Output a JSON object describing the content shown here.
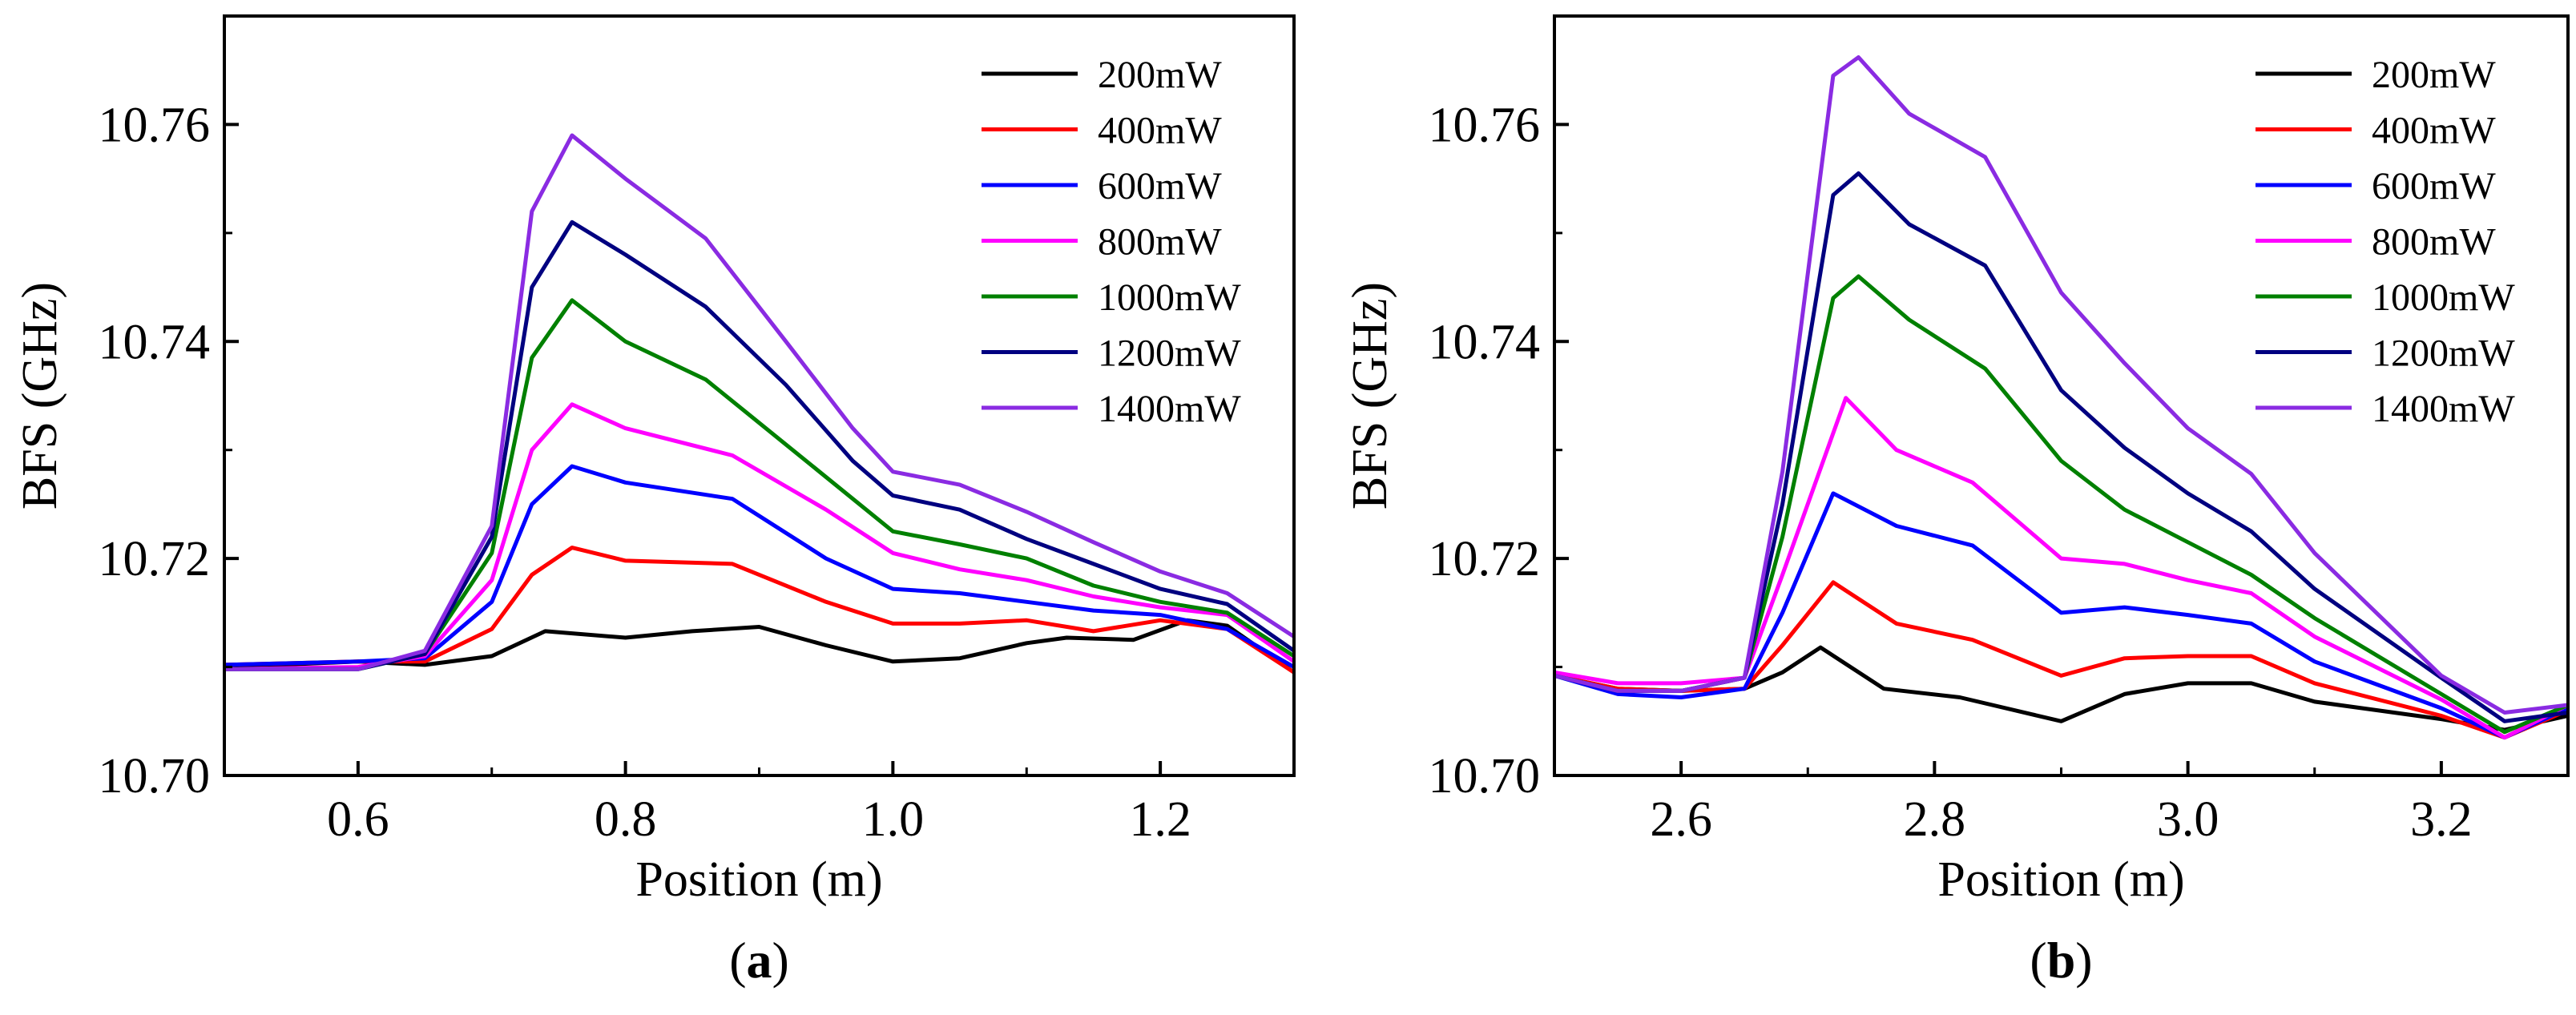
{
  "chart_data": [
    {
      "type": "line",
      "panel_label": "a",
      "xlabel": "Position (m)",
      "ylabel": "BFS  (GHz)",
      "xlim": [
        0.5,
        1.3
      ],
      "ylim": [
        10.7,
        10.77
      ],
      "xticks": [
        0.6,
        0.8,
        1.0,
        1.2
      ],
      "xtick_labels": [
        "0.6",
        "0.8",
        "1.0",
        "1.2"
      ],
      "yticks": [
        10.7,
        10.72,
        10.74,
        10.76
      ],
      "ytick_labels": [
        "10.70",
        "10.72",
        "10.74",
        "10.76"
      ],
      "legend_position": "top-right",
      "series": [
        {
          "name": "200mW",
          "color": "#000000",
          "points": [
            [
              0.5,
              10.71
            ],
            [
              0.6,
              10.7105
            ],
            [
              0.65,
              10.7102
            ],
            [
              0.7,
              10.711
            ],
            [
              0.74,
              10.7133
            ],
            [
              0.8,
              10.7127
            ],
            [
              0.85,
              10.7133
            ],
            [
              0.9,
              10.7137
            ],
            [
              0.95,
              10.712
            ],
            [
              1.0,
              10.7105
            ],
            [
              1.05,
              10.7108
            ],
            [
              1.1,
              10.7122
            ],
            [
              1.13,
              10.7127
            ],
            [
              1.18,
              10.7125
            ],
            [
              1.22,
              10.7143
            ],
            [
              1.25,
              10.7138
            ],
            [
              1.3,
              10.7095
            ]
          ]
        },
        {
          "name": "400mW",
          "color": "#ff0000",
          "points": [
            [
              0.5,
              10.7102
            ],
            [
              0.6,
              10.7105
            ],
            [
              0.65,
              10.7105
            ],
            [
              0.7,
              10.7135
            ],
            [
              0.73,
              10.7185
            ],
            [
              0.76,
              10.721
            ],
            [
              0.8,
              10.7198
            ],
            [
              0.88,
              10.7195
            ],
            [
              0.95,
              10.716
            ],
            [
              1.0,
              10.714
            ],
            [
              1.05,
              10.714
            ],
            [
              1.1,
              10.7143
            ],
            [
              1.15,
              10.7133
            ],
            [
              1.2,
              10.7143
            ],
            [
              1.25,
              10.7135
            ],
            [
              1.3,
              10.7095
            ]
          ]
        },
        {
          "name": "600mW",
          "color": "#0000ff",
          "points": [
            [
              0.5,
              10.7102
            ],
            [
              0.6,
              10.7105
            ],
            [
              0.65,
              10.7108
            ],
            [
              0.7,
              10.716
            ],
            [
              0.73,
              10.725
            ],
            [
              0.76,
              10.7285
            ],
            [
              0.8,
              10.727
            ],
            [
              0.88,
              10.7255
            ],
            [
              0.95,
              10.72
            ],
            [
              1.0,
              10.7172
            ],
            [
              1.05,
              10.7168
            ],
            [
              1.1,
              10.716
            ],
            [
              1.15,
              10.7152
            ],
            [
              1.2,
              10.7148
            ],
            [
              1.25,
              10.7135
            ],
            [
              1.3,
              10.71
            ]
          ]
        },
        {
          "name": "800mW",
          "color": "#ff00ff",
          "points": [
            [
              0.5,
              10.7098
            ],
            [
              0.6,
              10.71
            ],
            [
              0.65,
              10.711
            ],
            [
              0.7,
              10.718
            ],
            [
              0.73,
              10.73
            ],
            [
              0.76,
              10.7342
            ],
            [
              0.8,
              10.732
            ],
            [
              0.88,
              10.7295
            ],
            [
              0.95,
              10.7245
            ],
            [
              1.0,
              10.7205
            ],
            [
              1.05,
              10.719
            ],
            [
              1.1,
              10.718
            ],
            [
              1.15,
              10.7165
            ],
            [
              1.2,
              10.7155
            ],
            [
              1.25,
              10.7148
            ],
            [
              1.3,
              10.7105
            ]
          ]
        },
        {
          "name": "1000mW",
          "color": "#008000",
          "points": [
            [
              0.5,
              10.7098
            ],
            [
              0.6,
              10.7098
            ],
            [
              0.65,
              10.7112
            ],
            [
              0.7,
              10.7205
            ],
            [
              0.73,
              10.7385
            ],
            [
              0.76,
              10.7438
            ],
            [
              0.8,
              10.74
            ],
            [
              0.86,
              10.7365
            ],
            [
              0.92,
              10.7305
            ],
            [
              1.0,
              10.7225
            ],
            [
              1.05,
              10.7213
            ],
            [
              1.1,
              10.72
            ],
            [
              1.15,
              10.7175
            ],
            [
              1.2,
              10.716
            ],
            [
              1.25,
              10.715
            ],
            [
              1.3,
              10.711
            ]
          ]
        },
        {
          "name": "1200mW",
          "color": "#000080",
          "points": [
            [
              0.5,
              10.7098
            ],
            [
              0.6,
              10.7098
            ],
            [
              0.65,
              10.7112
            ],
            [
              0.7,
              10.722
            ],
            [
              0.73,
              10.745
            ],
            [
              0.76,
              10.751
            ],
            [
              0.8,
              10.748
            ],
            [
              0.86,
              10.7432
            ],
            [
              0.92,
              10.736
            ],
            [
              0.97,
              10.729
            ],
            [
              1.0,
              10.7258
            ],
            [
              1.05,
              10.7245
            ],
            [
              1.1,
              10.7218
            ],
            [
              1.15,
              10.7195
            ],
            [
              1.2,
              10.7172
            ],
            [
              1.25,
              10.7158
            ],
            [
              1.3,
              10.7115
            ]
          ]
        },
        {
          "name": "1400mW",
          "color": "#8a2be2",
          "points": [
            [
              0.5,
              10.7098
            ],
            [
              0.6,
              10.7098
            ],
            [
              0.65,
              10.7115
            ],
            [
              0.7,
              10.723
            ],
            [
              0.73,
              10.752
            ],
            [
              0.76,
              10.759
            ],
            [
              0.8,
              10.755
            ],
            [
              0.86,
              10.7495
            ],
            [
              0.92,
              10.74
            ],
            [
              0.97,
              10.732
            ],
            [
              1.0,
              10.728
            ],
            [
              1.05,
              10.7268
            ],
            [
              1.1,
              10.7243
            ],
            [
              1.15,
              10.7215
            ],
            [
              1.2,
              10.7188
            ],
            [
              1.25,
              10.7168
            ],
            [
              1.3,
              10.7128
            ]
          ]
        }
      ]
    },
    {
      "type": "line",
      "panel_label": "b",
      "xlabel": "Position (m)",
      "ylabel": "BFS  (GHz)",
      "xlim": [
        2.5,
        3.3
      ],
      "ylim": [
        10.7,
        10.77
      ],
      "xticks": [
        2.6,
        2.8,
        3.0,
        3.2
      ],
      "xtick_labels": [
        "2.6",
        "2.8",
        "3.0",
        "3.2"
      ],
      "yticks": [
        10.7,
        10.72,
        10.74,
        10.76
      ],
      "ytick_labels": [
        "10.70",
        "10.72",
        "10.74",
        "10.76"
      ],
      "legend_position": "top-right",
      "series": [
        {
          "name": "200mW",
          "color": "#000000",
          "points": [
            [
              2.5,
              10.7092
            ],
            [
              2.55,
              10.708
            ],
            [
              2.6,
              10.7078
            ],
            [
              2.65,
              10.708
            ],
            [
              2.68,
              10.7095
            ],
            [
              2.71,
              10.7118
            ],
            [
              2.76,
              10.708
            ],
            [
              2.82,
              10.7072
            ],
            [
              2.9,
              10.705
            ],
            [
              2.95,
              10.7075
            ],
            [
              3.0,
              10.7085
            ],
            [
              3.05,
              10.7085
            ],
            [
              3.1,
              10.7068
            ],
            [
              3.2,
              10.7052
            ],
            [
              3.25,
              10.7042
            ],
            [
              3.3,
              10.7055
            ]
          ]
        },
        {
          "name": "400mW",
          "color": "#ff0000",
          "points": [
            [
              2.5,
              10.7092
            ],
            [
              2.55,
              10.708
            ],
            [
              2.6,
              10.7078
            ],
            [
              2.65,
              10.708
            ],
            [
              2.68,
              10.712
            ],
            [
              2.72,
              10.7178
            ],
            [
              2.77,
              10.714
            ],
            [
              2.83,
              10.7125
            ],
            [
              2.9,
              10.7092
            ],
            [
              2.95,
              10.7108
            ],
            [
              3.0,
              10.711
            ],
            [
              3.05,
              10.711
            ],
            [
              3.1,
              10.7085
            ],
            [
              3.2,
              10.7055
            ],
            [
              3.25,
              10.7035
            ],
            [
              3.3,
              10.706
            ]
          ]
        },
        {
          "name": "600mW",
          "color": "#0000ff",
          "points": [
            [
              2.5,
              10.7092
            ],
            [
              2.55,
              10.7075
            ],
            [
              2.6,
              10.7072
            ],
            [
              2.65,
              10.708
            ],
            [
              2.68,
              10.715
            ],
            [
              2.72,
              10.726
            ],
            [
              2.77,
              10.723
            ],
            [
              2.83,
              10.7212
            ],
            [
              2.9,
              10.715
            ],
            [
              2.95,
              10.7155
            ],
            [
              3.0,
              10.7148
            ],
            [
              3.05,
              10.714
            ],
            [
              3.1,
              10.7105
            ],
            [
              3.2,
              10.7062
            ],
            [
              3.25,
              10.7035
            ],
            [
              3.3,
              10.7062
            ]
          ]
        },
        {
          "name": "800mW",
          "color": "#ff00ff",
          "points": [
            [
              2.5,
              10.7095
            ],
            [
              2.55,
              10.7085
            ],
            [
              2.6,
              10.7085
            ],
            [
              2.65,
              10.709
            ],
            [
              2.68,
              10.7185
            ],
            [
              2.73,
              10.7348
            ],
            [
              2.77,
              10.73
            ],
            [
              2.83,
              10.727
            ],
            [
              2.9,
              10.72
            ],
            [
              2.95,
              10.7195
            ],
            [
              3.0,
              10.718
            ],
            [
              3.05,
              10.7168
            ],
            [
              3.1,
              10.7128
            ],
            [
              3.2,
              10.707
            ],
            [
              3.25,
              10.7035
            ],
            [
              3.3,
              10.7065
            ]
          ]
        },
        {
          "name": "1000mW",
          "color": "#008000",
          "points": [
            [
              2.5,
              10.7092
            ],
            [
              2.55,
              10.7078
            ],
            [
              2.6,
              10.7078
            ],
            [
              2.65,
              10.709
            ],
            [
              2.68,
              10.722
            ],
            [
              2.72,
              10.744
            ],
            [
              2.74,
              10.746
            ],
            [
              2.78,
              10.742
            ],
            [
              2.84,
              10.7375
            ],
            [
              2.9,
              10.729
            ],
            [
              2.95,
              10.7245
            ],
            [
              3.0,
              10.7215
            ],
            [
              3.05,
              10.7185
            ],
            [
              3.1,
              10.7145
            ],
            [
              3.2,
              10.7075
            ],
            [
              3.25,
              10.704
            ],
            [
              3.3,
              10.7065
            ]
          ]
        },
        {
          "name": "1200mW",
          "color": "#000080",
          "points": [
            [
              2.5,
              10.7092
            ],
            [
              2.55,
              10.7078
            ],
            [
              2.6,
              10.7078
            ],
            [
              2.65,
              10.709
            ],
            [
              2.68,
              10.725
            ],
            [
              2.72,
              10.7535
            ],
            [
              2.74,
              10.7555
            ],
            [
              2.78,
              10.7508
            ],
            [
              2.84,
              10.747
            ],
            [
              2.9,
              10.7355
            ],
            [
              2.95,
              10.7302
            ],
            [
              3.0,
              10.726
            ],
            [
              3.05,
              10.7225
            ],
            [
              3.1,
              10.7172
            ],
            [
              3.2,
              10.709
            ],
            [
              3.25,
              10.705
            ],
            [
              3.3,
              10.7058
            ]
          ]
        },
        {
          "name": "1400mW",
          "color": "#8a2be2",
          "points": [
            [
              2.5,
              10.7092
            ],
            [
              2.55,
              10.7078
            ],
            [
              2.6,
              10.7078
            ],
            [
              2.65,
              10.709
            ],
            [
              2.68,
              10.728
            ],
            [
              2.72,
              10.7645
            ],
            [
              2.74,
              10.7662
            ],
            [
              2.78,
              10.761
            ],
            [
              2.84,
              10.757
            ],
            [
              2.9,
              10.7445
            ],
            [
              2.95,
              10.738
            ],
            [
              3.0,
              10.732
            ],
            [
              3.05,
              10.7278
            ],
            [
              3.1,
              10.7205
            ],
            [
              3.2,
              10.7092
            ],
            [
              3.25,
              10.7058
            ],
            [
              3.3,
              10.7065
            ]
          ]
        }
      ]
    }
  ]
}
